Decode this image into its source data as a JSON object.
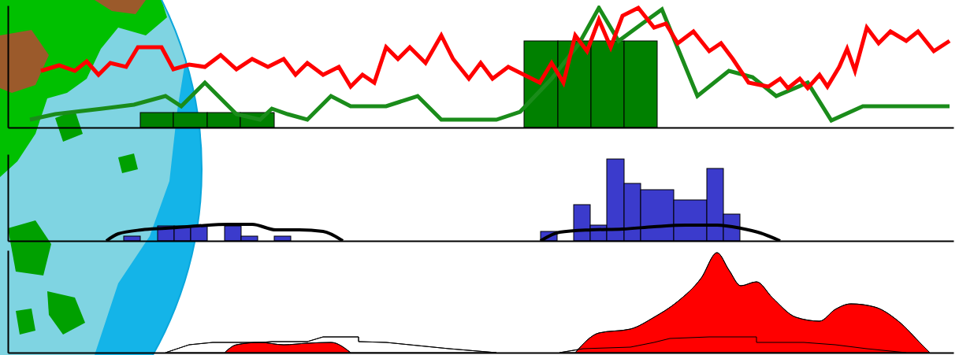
{
  "chart_data": [
    {
      "type": "line",
      "xlim": [
        0,
        1200
      ],
      "ylim": [
        0,
        155
      ],
      "tick_labels": false,
      "grid": false,
      "series": [
        {
          "type": "histogram",
          "color": "#008000",
          "bins": [
            168,
            210,
            253,
            295,
            338,
            655,
            698,
            740,
            782,
            824
          ],
          "values": [
            19,
            19,
            19,
            19,
            0,
            110,
            110,
            110,
            110
          ]
        },
        {
          "type": "line",
          "color": "#1a8c1a",
          "x": [
            28,
            60,
            120,
            160,
            200,
            220,
            250,
            290,
            320,
            335,
            355,
            380,
            410,
            435,
            480,
            520,
            550,
            620,
            650,
            690,
            725,
            750,
            775,
            805,
            830,
            875,
            915,
            945,
            975,
            1015,
            1045,
            1085,
            1195
          ],
          "values": [
            10,
            17,
            24,
            29,
            40,
            27,
            57,
            17,
            10,
            24,
            17,
            10,
            40,
            27,
            27,
            40,
            10,
            10,
            20,
            62,
            107,
            152,
            110,
            132,
            150,
            40,
            72,
            64,
            40,
            57,
            9,
            27,
            27
          ]
        },
        {
          "type": "line",
          "color": "#ff0000",
          "x": [
            42,
            65,
            85,
            100,
            115,
            130,
            150,
            165,
            180,
            195,
            210,
            230,
            250,
            270,
            290,
            310,
            330,
            350,
            365,
            380,
            400,
            420,
            435,
            450,
            465,
            480,
            495,
            510,
            530,
            550,
            565,
            585,
            600,
            615,
            635,
            655,
            675,
            690,
            705,
            720,
            735,
            750,
            765,
            780,
            800,
            820,
            835,
            850,
            870,
            890,
            905,
            920,
            940,
            965,
            980,
            990,
            1005,
            1015,
            1030,
            1040,
            1055,
            1065,
            1075,
            1090,
            1105,
            1120,
            1140,
            1155,
            1175,
            1195
          ],
          "values": [
            72,
            79,
            72,
            84,
            67,
            82,
            77,
            102,
            102,
            102,
            74,
            80,
            77,
            92,
            74,
            87,
            77,
            87,
            67,
            82,
            67,
            77,
            52,
            67,
            57,
            102,
            87,
            102,
            82,
            117,
            87,
            62,
            82,
            62,
            77,
            67,
            57,
            82,
            57,
            117,
            97,
            137,
            102,
            142,
            152,
            127,
            132,
            107,
            122,
            97,
            107,
            87,
            57,
            52,
            62,
            50,
            62,
            50,
            67,
            52,
            77,
            100,
            72,
            127,
            107,
            122,
            110,
            122,
            97,
            110
          ]
        }
      ]
    },
    {
      "type": "histogram",
      "xlim": [
        0,
        1200
      ],
      "ylim": [
        0,
        110
      ],
      "tick_labels": false,
      "grid": false,
      "series": [
        {
          "type": "histogram",
          "color": "#3b3bcc",
          "bins": [
            147,
            168,
            190,
            211,
            232,
            253,
            275,
            296,
            317,
            338,
            359,
            676,
            697,
            718,
            739,
            760,
            782,
            803,
            845,
            887,
            908,
            929
          ],
          "values": [
            6,
            0,
            19,
            19,
            19,
            0,
            19,
            6,
            0,
            6,
            0,
            12,
            0,
            46,
            20,
            104,
            73,
            65,
            52,
            92,
            34
          ]
        },
        {
          "type": "line",
          "color": "#000000",
          "line_style": "smooth",
          "x": [
            125,
            140,
            170,
            200,
            240,
            280,
            310,
            340,
            370,
            400,
            425,
            550,
            676,
            700,
            740,
            780,
            820,
            860,
            900,
            930,
            955,
            980
          ],
          "values": [
            0,
            9,
            14,
            16,
            19,
            21,
            21,
            14,
            14,
            12,
            0,
            null,
            0,
            11,
            14,
            15,
            18,
            20,
            20,
            16,
            10,
            0
          ]
        }
      ]
    },
    {
      "type": "area",
      "xlim": [
        0,
        1200
      ],
      "ylim": [
        0,
        130
      ],
      "tick_labels": false,
      "grid": false,
      "series": [
        {
          "type": "area",
          "color": "#ffffff",
          "x": [
            200,
            230,
            260,
            320,
            335,
            380,
            400,
            445,
            445,
            480,
            510,
            560,
            620,
            660,
            700,
            730,
            790,
            820,
            840,
            890,
            950,
            950,
            1010,
            1050,
            1090,
            1140
          ],
          "values": [
            0,
            10,
            13,
            13,
            14,
            14,
            20,
            20,
            14,
            13,
            10,
            5,
            0,
            null,
            0,
            5,
            7,
            13,
            18,
            20,
            20,
            13,
            13,
            10,
            5,
            0
          ]
        },
        {
          "type": "area",
          "color": "#ff0000",
          "line_style": "smooth",
          "x": [
            275,
            290,
            320,
            350,
            380,
            410,
            435,
            577,
            720,
            750,
            790,
            820,
            850,
            880,
            900,
            915,
            930,
            950,
            970,
            1000,
            1030,
            1050,
            1070,
            1100,
            1130,
            1160,
            1170
          ],
          "values": [
            0,
            10,
            13,
            10,
            12,
            13,
            0,
            null,
            0,
            25,
            30,
            45,
            65,
            95,
            127,
            105,
            85,
            90,
            70,
            45,
            40,
            55,
            62,
            58,
            40,
            10,
            0
          ]
        }
      ]
    }
  ]
}
